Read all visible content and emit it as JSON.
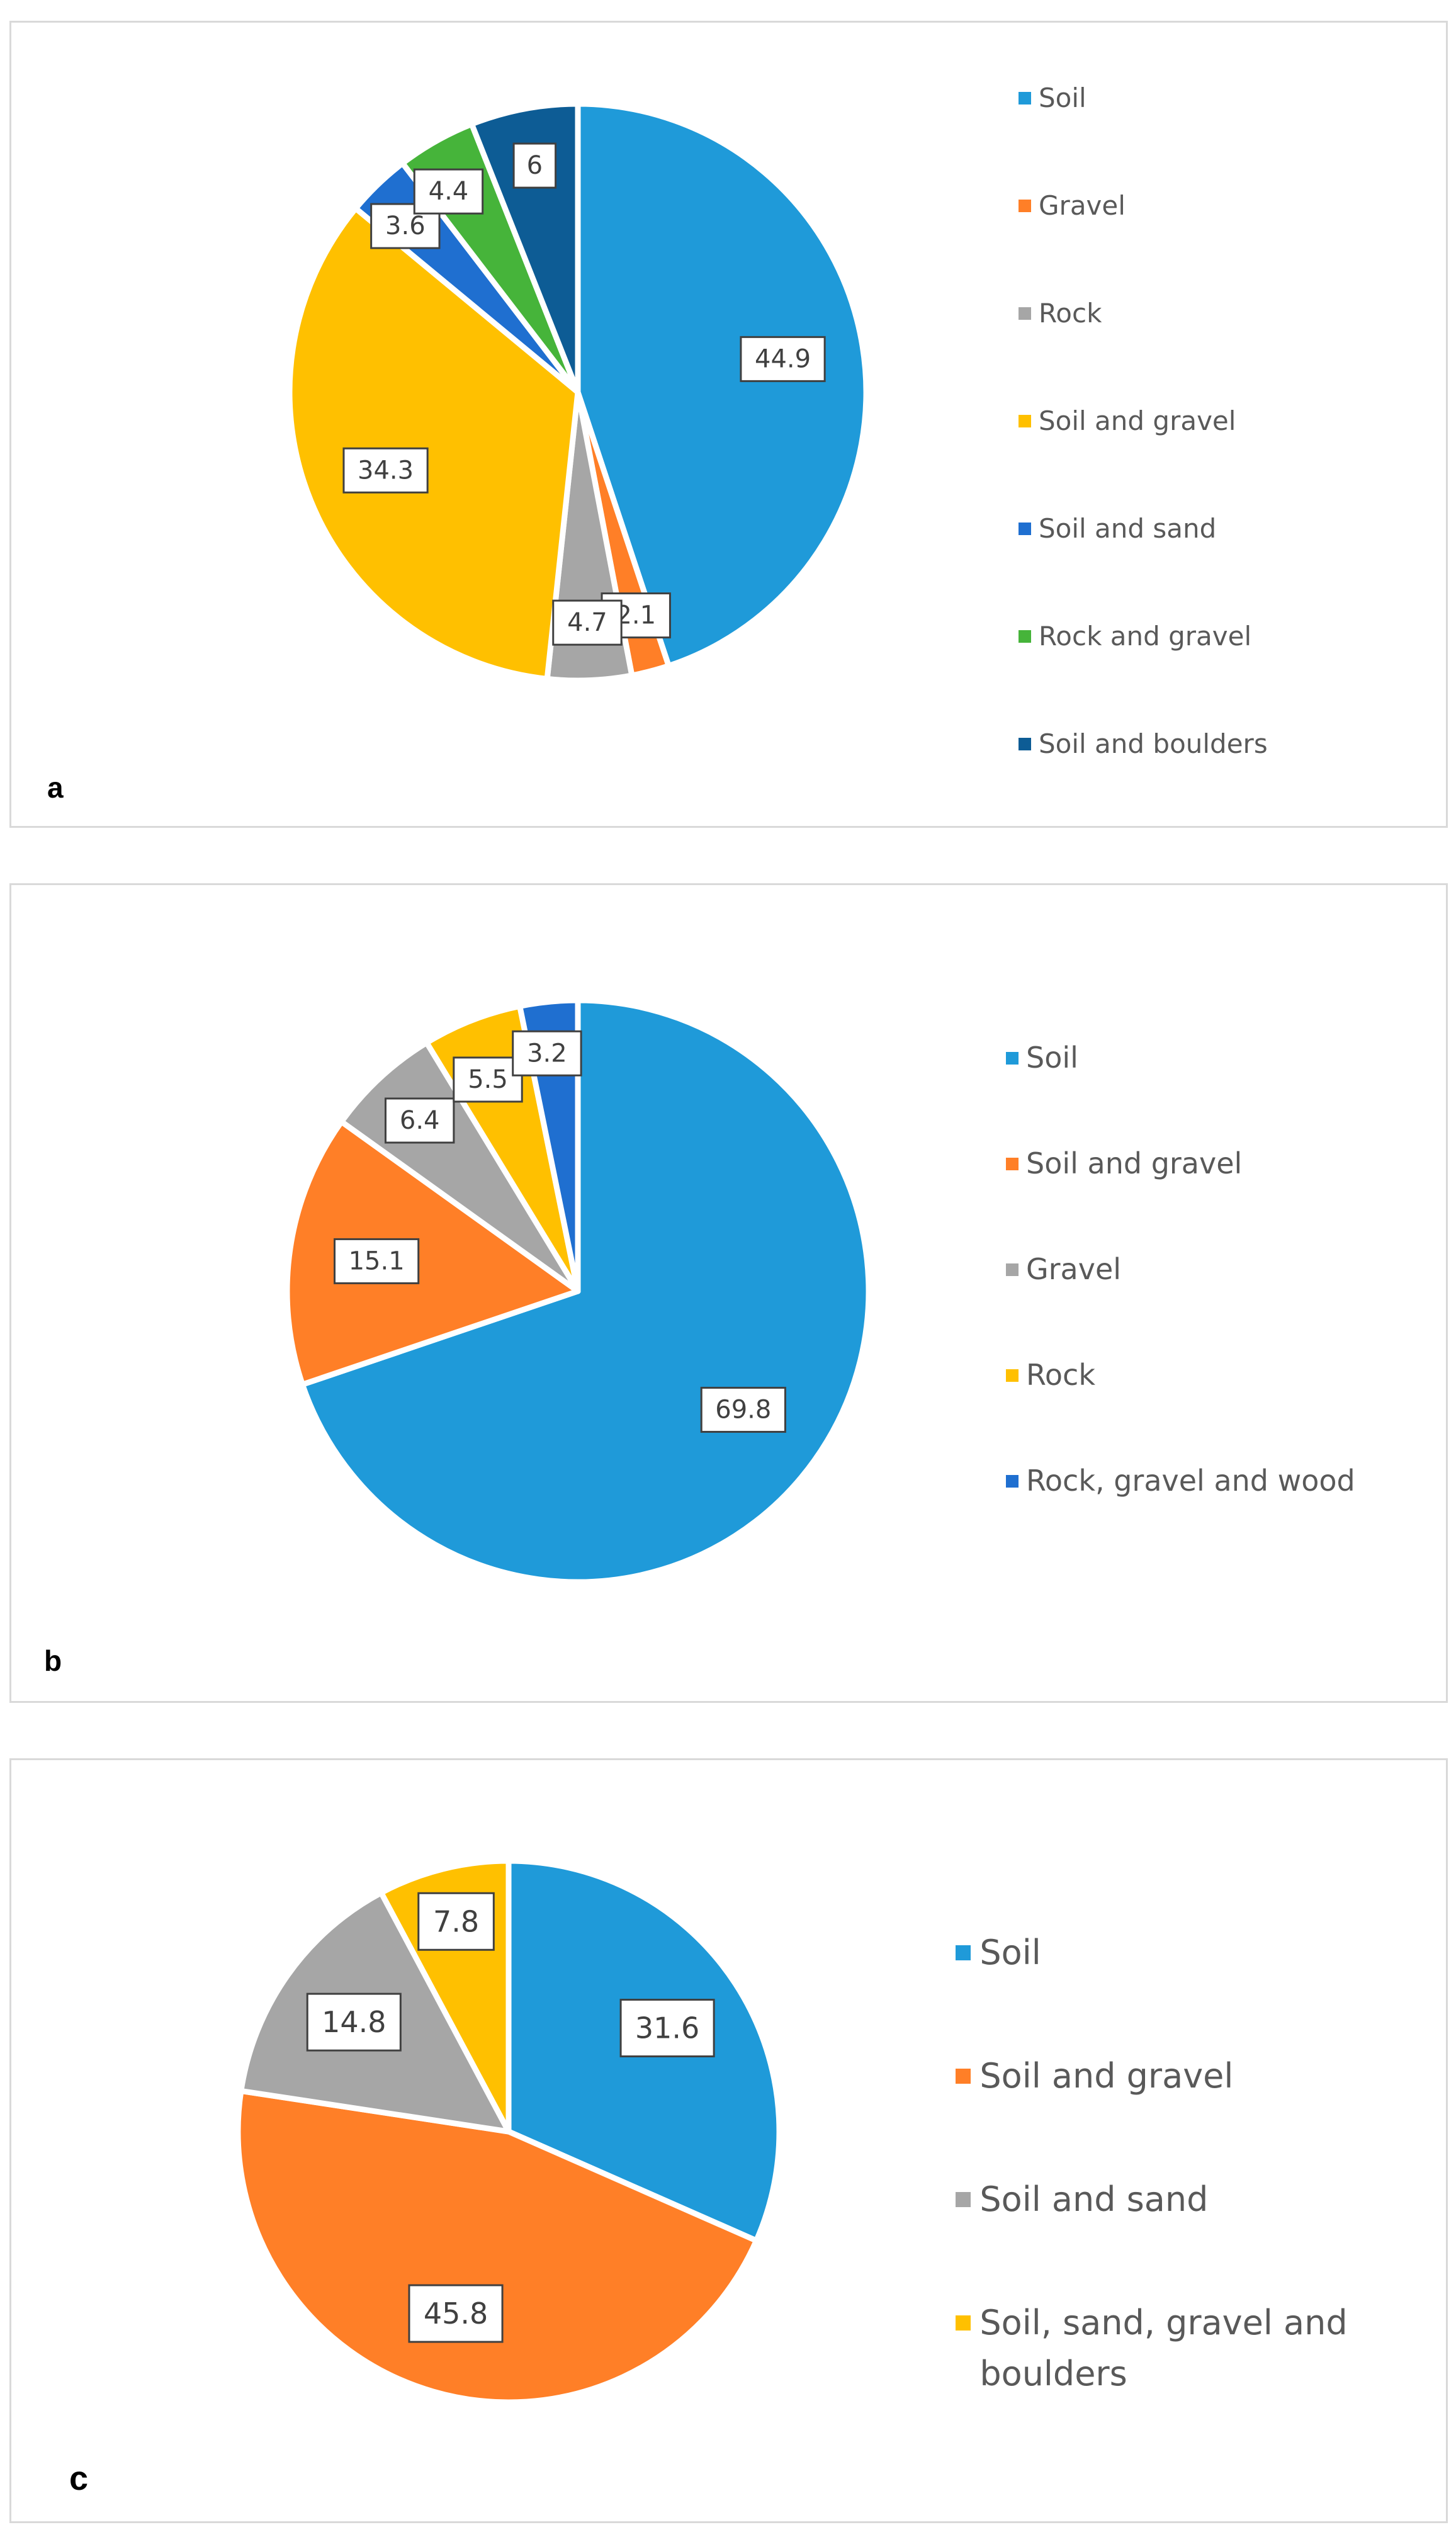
{
  "chart_data": [
    {
      "type": "pie",
      "panel_label": "a",
      "start_angle_deg": 0,
      "direction": "clockwise",
      "slices": [
        {
          "label": "Soil",
          "value": 44.9,
          "display": "44.9",
          "color": "#1f9ad9"
        },
        {
          "label": "Gravel",
          "value": 2.1,
          "display": "2.1",
          "color": "#ff7f27"
        },
        {
          "label": "Rock",
          "value": 4.7,
          "display": "4.7",
          "color": "#a6a6a6"
        },
        {
          "label": "Soil and gravel",
          "value": 34.3,
          "display": "34.3",
          "color": "#ffc000"
        },
        {
          "label": "Soil and sand",
          "value": 3.6,
          "display": "3.6",
          "color": "#1f6fd0"
        },
        {
          "label": "Rock and gravel",
          "value": 4.4,
          "display": "4.4",
          "color": "#46b43a"
        },
        {
          "label": "Soil and boulders",
          "value": 6.0,
          "display": "6",
          "color": "#0d5c95"
        }
      ]
    },
    {
      "type": "pie",
      "panel_label": "b",
      "start_angle_deg": 0,
      "direction": "clockwise",
      "slices": [
        {
          "label": "Soil",
          "value": 69.8,
          "display": "69.8",
          "color": "#1f9ad9"
        },
        {
          "label": "Soil and gravel",
          "value": 15.1,
          "display": "15.1",
          "color": "#ff7f27"
        },
        {
          "label": "Gravel",
          "value": 6.4,
          "display": "6.4",
          "color": "#a6a6a6"
        },
        {
          "label": "Rock",
          "value": 5.5,
          "display": "5.5",
          "color": "#ffc000"
        },
        {
          "label": "Rock, gravel and wood",
          "value": 3.2,
          "display": "3.2",
          "color": "#1f6fd0"
        }
      ]
    },
    {
      "type": "pie",
      "panel_label": "c",
      "start_angle_deg": 0,
      "direction": "clockwise",
      "slices": [
        {
          "label": "Soil",
          "value": 31.6,
          "display": "31.6",
          "color": "#1f9ad9"
        },
        {
          "label": "Soil and gravel",
          "value": 45.8,
          "display": "45.8",
          "color": "#ff7f27"
        },
        {
          "label": "Soil and sand",
          "value": 14.8,
          "display": "14.8",
          "color": "#a6a6a6"
        },
        {
          "label": "Soil, sand, gravel and boulders",
          "value": 7.8,
          "display": "7.8",
          "color": "#ffc000"
        }
      ]
    }
  ]
}
